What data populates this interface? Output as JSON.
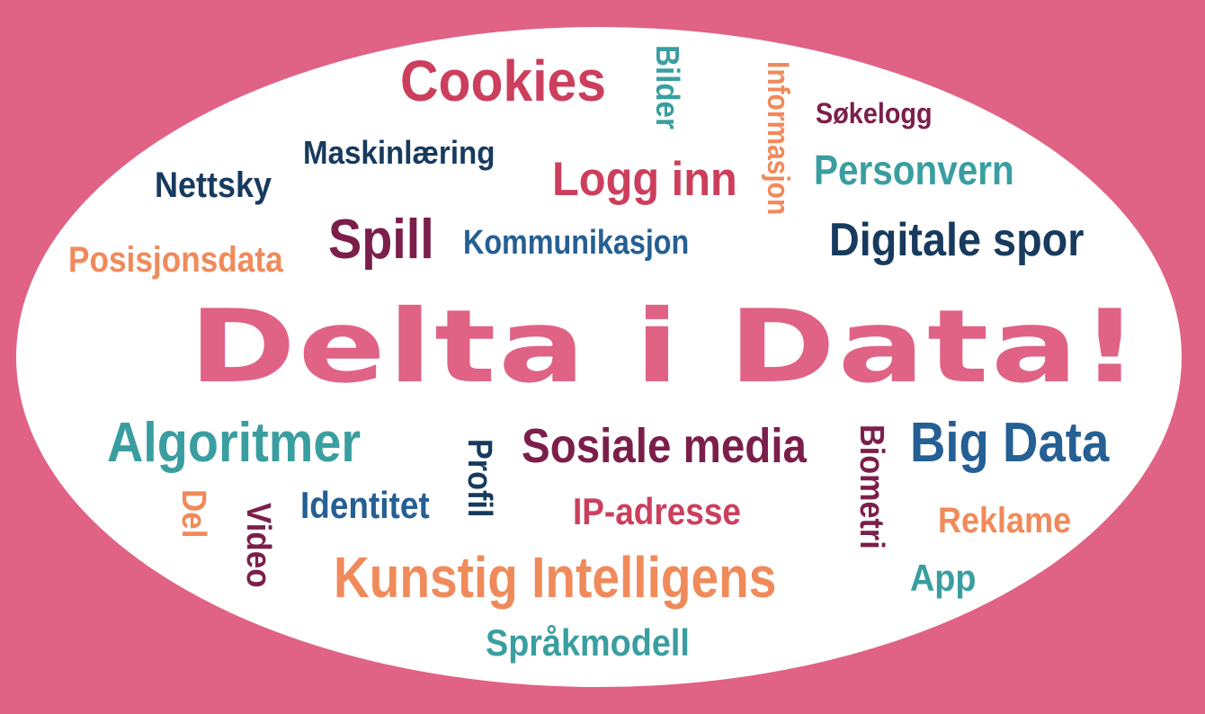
{
  "title": "Delta i Data!",
  "colors": {
    "background": "#e06285",
    "oval": "#ffffff",
    "pink": "#e06285",
    "crimson": "#cc3f5c",
    "maroon": "#7b1f4a",
    "navy": "#173a5e",
    "blue": "#255f93",
    "teal": "#3a9ea0",
    "orange": "#f08a5a"
  },
  "words": {
    "cookies": "Cookies",
    "bilder": "Bilder",
    "informasjon": "Informasjon",
    "sokelogg": "Søkelogg",
    "maskinlaering": "Maskinlæring",
    "logg_inn": "Logg inn",
    "personvern": "Personvern",
    "nettsky": "Nettsky",
    "spill": "Spill",
    "kommunikasjon": "Kommunikasjon",
    "digitale_spor": "Digitale spor",
    "posisjonsdata": "Posisjonsdata",
    "algoritmer": "Algoritmer",
    "profil": "Profil",
    "sosiale_media": "Sosiale media",
    "biometri": "Biometri",
    "big_data": "Big Data",
    "del": "Del",
    "video": "Video",
    "identitet": "Identitet",
    "ip_adresse": "IP-adresse",
    "reklame": "Reklame",
    "kunstig_intelligens": "Kunstig Intelligens",
    "app": "App",
    "sprakmodell": "Språkmodell"
  }
}
